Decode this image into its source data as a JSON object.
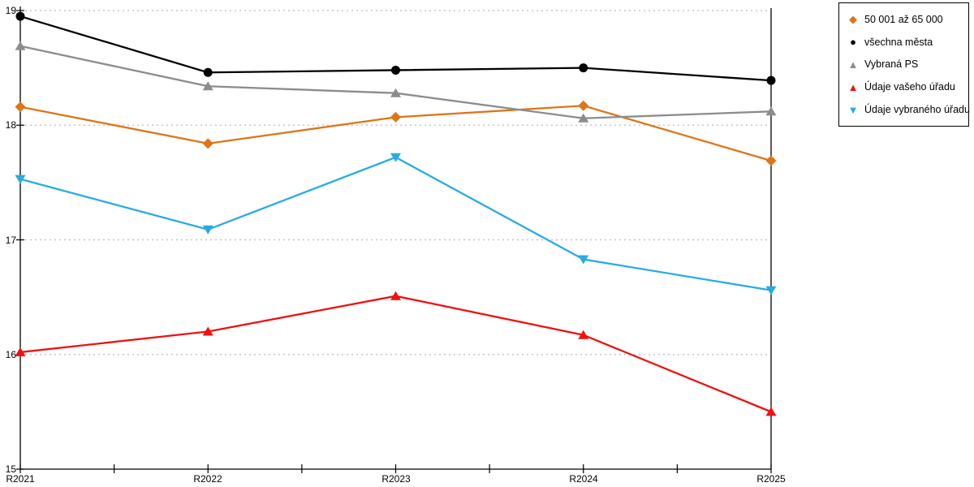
{
  "chart_data": {
    "type": "line",
    "title": "",
    "xlabel": "",
    "ylabel": "",
    "categories": [
      "R2021",
      "R2022",
      "R2023",
      "R2024",
      "R2025"
    ],
    "series": [
      {
        "name": "50 001 až 65 000",
        "color": "#DE7517",
        "marker": "diamond",
        "values": [
          18.16,
          17.84,
          18.07,
          18.17,
          17.69
        ]
      },
      {
        "name": "všechna města",
        "color": "#000000",
        "marker": "circle",
        "values": [
          18.95,
          18.46,
          18.48,
          18.5,
          18.39
        ]
      },
      {
        "name": "Vybraná PS",
        "color": "#8C8C8C",
        "marker": "triangle-up",
        "values": [
          18.69,
          18.34,
          18.28,
          18.06,
          18.12
        ]
      },
      {
        "name": "Údaje vašeho úřadu",
        "color": "#EE1111",
        "marker": "triangle-up",
        "values": [
          16.02,
          16.2,
          16.51,
          16.17,
          15.5
        ]
      },
      {
        "name": "Údaje vybraného úřadu",
        "color": "#29ABE2",
        "marker": "triangle-down",
        "values": [
          17.53,
          17.09,
          17.72,
          16.83,
          16.56
        ]
      }
    ],
    "ylim": [
      15,
      19
    ],
    "yticks": [
      15,
      16,
      17,
      18,
      19
    ],
    "grid": "dotted horizontal lines at integer y values",
    "legend_position": "top-right"
  },
  "colors": {
    "background": "#FFFFFF",
    "axis": "#000000",
    "grid": "#BBBBBB"
  }
}
